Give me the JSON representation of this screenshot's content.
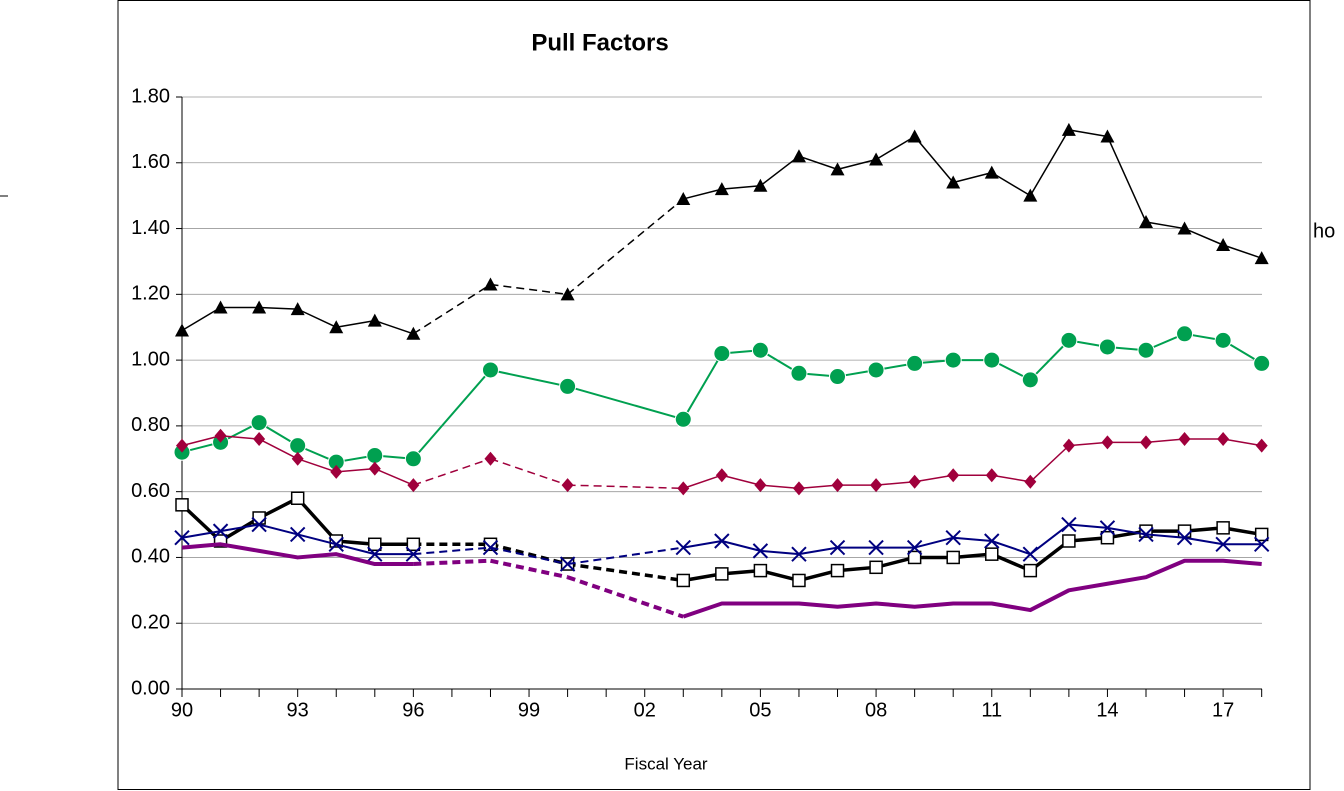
{
  "chart_data": {
    "type": "line",
    "title": "Pull Factors",
    "xlabel": "Fiscal Year",
    "annotation": "ho",
    "categories": [
      "90",
      null,
      null,
      "93",
      null,
      null,
      "96",
      null,
      null,
      "99",
      null,
      null,
      "02",
      null,
      null,
      "05",
      null,
      null,
      "08",
      null,
      null,
      "11",
      null,
      null,
      "14",
      null,
      null,
      "17",
      null
    ],
    "ylim": [
      0,
      1.8
    ],
    "yticks": [
      {
        "value": 0,
        "label": "0.00"
      },
      {
        "value": 0.2,
        "label": "0.20"
      },
      {
        "value": 0.4,
        "label": "0.40"
      },
      {
        "value": 0.6,
        "label": "0.60"
      },
      {
        "value": 0.8,
        "label": "0.80"
      },
      {
        "value": 1.0,
        "label": "1.00"
      },
      {
        "value": 1.2,
        "label": "1.20"
      },
      {
        "value": 1.4,
        "label": "1.40"
      },
      {
        "value": 1.6,
        "label": "1.60"
      },
      {
        "value": 1.8,
        "label": "1.80"
      }
    ],
    "grid": true,
    "series": [
      {
        "color": "#000000",
        "marker": "triangle",
        "width": 1.5,
        "gap_style": "dashed",
        "values": [
          1.09,
          1.16,
          1.16,
          1.155,
          1.1,
          1.12,
          1.08,
          null,
          1.23,
          null,
          1.2,
          null,
          null,
          1.49,
          1.52,
          1.53,
          1.62,
          1.58,
          1.61,
          1.68,
          1.54,
          1.57,
          1.5,
          1.7,
          1.68,
          1.42,
          1.4,
          1.35,
          1.31
        ]
      },
      {
        "color": "#00a050",
        "marker": "circle",
        "width": 2,
        "gap_style": "solid",
        "values": [
          0.72,
          0.75,
          0.81,
          0.74,
          0.69,
          0.71,
          0.7,
          null,
          0.97,
          null,
          0.92,
          null,
          null,
          0.82,
          1.02,
          1.03,
          0.96,
          0.95,
          0.97,
          0.99,
          1.0,
          1.0,
          0.94,
          1.06,
          1.04,
          1.03,
          1.08,
          1.06,
          0.99
        ]
      },
      {
        "color": "#a0003c",
        "marker": "diamond",
        "width": 1.5,
        "gap_style": "dashed",
        "values": [
          0.74,
          0.77,
          0.76,
          0.7,
          0.66,
          0.67,
          0.62,
          null,
          0.7,
          null,
          0.62,
          null,
          null,
          0.61,
          0.65,
          0.62,
          0.61,
          0.62,
          0.62,
          0.63,
          0.65,
          0.65,
          0.63,
          0.74,
          0.75,
          0.75,
          0.76,
          0.76,
          0.74
        ]
      },
      {
        "color": "#000000",
        "marker": "square",
        "width": 3.5,
        "gap_style": "dashed",
        "values": [
          0.56,
          0.45,
          0.52,
          0.58,
          0.45,
          0.44,
          0.44,
          null,
          0.44,
          null,
          0.38,
          null,
          null,
          0.33,
          0.35,
          0.36,
          0.33,
          0.36,
          0.37,
          0.4,
          0.4,
          0.41,
          0.36,
          0.45,
          0.46,
          0.48,
          0.48,
          0.49,
          0.47
        ]
      },
      {
        "color": "#000080",
        "marker": "x",
        "width": 2,
        "gap_style": "dashed",
        "values": [
          0.46,
          0.48,
          0.5,
          0.47,
          0.44,
          0.41,
          0.41,
          null,
          0.43,
          null,
          0.38,
          null,
          null,
          0.43,
          0.45,
          0.42,
          0.41,
          0.43,
          0.43,
          0.43,
          0.46,
          0.45,
          0.41,
          0.5,
          0.49,
          0.47,
          0.46,
          0.44,
          0.44
        ]
      },
      {
        "color": "#800080",
        "marker": "none",
        "width": 4,
        "gap_style": "dashed",
        "values": [
          0.43,
          0.44,
          0.42,
          0.4,
          0.41,
          0.38,
          0.38,
          null,
          0.39,
          null,
          0.34,
          null,
          null,
          0.22,
          0.26,
          0.26,
          0.26,
          0.25,
          0.26,
          0.25,
          0.26,
          0.26,
          0.24,
          0.3,
          0.32,
          0.34,
          0.39,
          0.39,
          0.38
        ]
      }
    ]
  }
}
